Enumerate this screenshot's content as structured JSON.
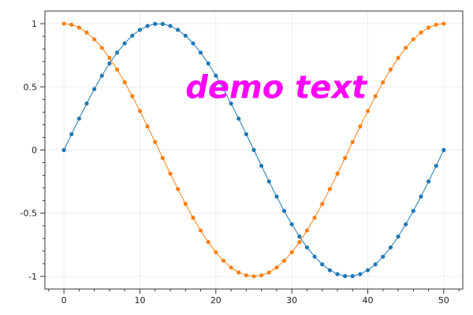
{
  "chart_data": {
    "type": "line",
    "x": [
      0,
      1,
      2,
      3,
      4,
      5,
      6,
      7,
      8,
      9,
      10,
      11,
      12,
      13,
      14,
      15,
      16,
      17,
      18,
      19,
      20,
      21,
      22,
      23,
      24,
      25,
      26,
      27,
      28,
      29,
      30,
      31,
      32,
      33,
      34,
      35,
      36,
      37,
      38,
      39,
      40,
      41,
      42,
      43,
      44,
      45,
      46,
      47,
      48,
      49,
      50
    ],
    "series": [
      {
        "color": "#1f77b4",
        "values": [
          0.0,
          0.125,
          0.249,
          0.368,
          0.482,
          0.588,
          0.685,
          0.771,
          0.844,
          0.905,
          0.951,
          0.982,
          0.998,
          0.998,
          0.982,
          0.951,
          0.905,
          0.844,
          0.771,
          0.685,
          0.588,
          0.482,
          0.368,
          0.249,
          0.125,
          0.0,
          -0.125,
          -0.249,
          -0.368,
          -0.482,
          -0.588,
          -0.685,
          -0.771,
          -0.844,
          -0.905,
          -0.951,
          -0.982,
          -0.998,
          -0.998,
          -0.982,
          -0.951,
          -0.905,
          -0.844,
          -0.771,
          -0.685,
          -0.588,
          -0.482,
          -0.368,
          -0.249,
          -0.125,
          0.0
        ]
      },
      {
        "color": "#ff7f0e",
        "values": [
          1.0,
          0.992,
          0.969,
          0.93,
          0.876,
          0.809,
          0.729,
          0.637,
          0.536,
          0.426,
          0.309,
          0.187,
          0.063,
          -0.063,
          -0.187,
          -0.309,
          -0.426,
          -0.536,
          -0.637,
          -0.729,
          -0.809,
          -0.876,
          -0.93,
          -0.969,
          -0.992,
          -1.0,
          -0.992,
          -0.969,
          -0.93,
          -0.876,
          -0.809,
          -0.729,
          -0.637,
          -0.536,
          -0.426,
          -0.309,
          -0.187,
          -0.063,
          0.063,
          0.187,
          0.309,
          0.426,
          0.536,
          0.637,
          0.729,
          0.809,
          0.876,
          0.93,
          0.969,
          0.992,
          1.0
        ]
      }
    ],
    "xticks": [
      "0",
      "10",
      "20",
      "30",
      "40",
      "50"
    ],
    "yticks": [
      "1",
      "0.5",
      "0",
      "-0.5",
      "-1"
    ],
    "xlim": [
      -2.5,
      52.5
    ],
    "ylim": [
      -1.1,
      1.1
    ],
    "grid": true,
    "annotation": {
      "text": "demo text",
      "x": 16,
      "y": 0.5,
      "color": "#ff00ff"
    }
  }
}
